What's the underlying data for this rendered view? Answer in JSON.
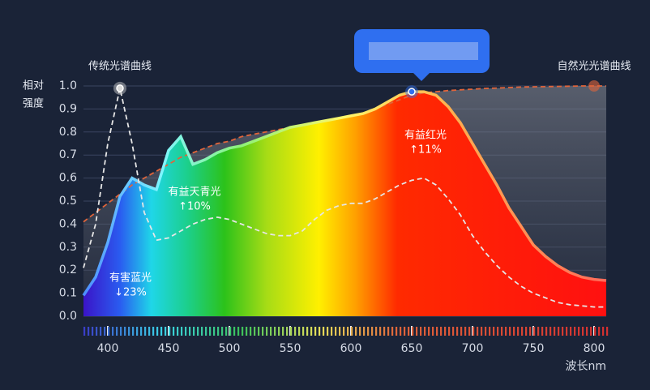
{
  "chart_data": {
    "type": "spectrum",
    "y_label_lines": [
      "相对",
      "强度"
    ],
    "x_label": "波长nm",
    "x": [
      380,
      390,
      400,
      410,
      420,
      430,
      440,
      450,
      460,
      470,
      480,
      490,
      500,
      510,
      520,
      530,
      540,
      550,
      560,
      570,
      580,
      590,
      600,
      610,
      620,
      630,
      640,
      650,
      660,
      670,
      680,
      690,
      700,
      710,
      720,
      730,
      740,
      750,
      760,
      770,
      780,
      790,
      800,
      810
    ],
    "series": [
      {
        "values": [
          0.09,
          0.17,
          0.32,
          0.52,
          0.6,
          0.57,
          0.55,
          0.72,
          0.78,
          0.66,
          0.68,
          0.71,
          0.73,
          0.74,
          0.76,
          0.78,
          0.8,
          0.82,
          0.83,
          0.84,
          0.85,
          0.86,
          0.87,
          0.88,
          0.9,
          0.93,
          0.96,
          0.975,
          0.975,
          0.96,
          0.91,
          0.84,
          0.75,
          0.66,
          0.57,
          0.47,
          0.39,
          0.31,
          0.26,
          0.22,
          0.19,
          0.17,
          0.16,
          0.155
        ]
      },
      {
        "name": "传统光谱曲线",
        "color": "#e6e6e6",
        "values": [
          0.21,
          0.4,
          0.75,
          0.99,
          0.75,
          0.45,
          0.33,
          0.34,
          0.37,
          0.4,
          0.42,
          0.43,
          0.42,
          0.4,
          0.38,
          0.36,
          0.35,
          0.35,
          0.37,
          0.42,
          0.46,
          0.48,
          0.49,
          0.49,
          0.51,
          0.54,
          0.57,
          0.59,
          0.6,
          0.57,
          0.51,
          0.44,
          0.35,
          0.28,
          0.22,
          0.17,
          0.13,
          0.1,
          0.08,
          0.06,
          0.05,
          0.045,
          0.04,
          0.04
        ]
      },
      {
        "name": "自然光光谱曲线",
        "color": "#e0643a",
        "values": [
          0.41,
          0.45,
          0.49,
          0.53,
          0.57,
          0.6,
          0.63,
          0.66,
          0.69,
          0.71,
          0.73,
          0.75,
          0.76,
          0.78,
          0.79,
          0.8,
          0.81,
          0.82,
          0.83,
          0.84,
          0.85,
          0.86,
          0.87,
          0.88,
          0.9,
          0.92,
          0.94,
          0.96,
          0.97,
          0.975,
          0.98,
          0.983,
          0.986,
          0.989,
          0.991,
          0.993,
          0.995,
          0.996,
          0.997,
          0.998,
          0.999,
          1.0,
          1.0,
          1.0
        ]
      }
    ],
    "annotations": [
      {
        "lines": [
          "有害蓝光",
          "↓23%"
        ]
      },
      {
        "lines": [
          "有益天青光",
          "↑10%"
        ]
      },
      {
        "lines": [
          "有益红光",
          "↑11%"
        ]
      }
    ],
    "xlim": [
      380,
      810
    ],
    "ylim": [
      0,
      1
    ],
    "xticks": [
      400,
      450,
      500,
      550,
      600,
      650,
      700,
      750,
      800
    ],
    "yticks": [
      {
        "value": 0,
        "label": "0.0"
      },
      0.1,
      0.2,
      0.3,
      0.4,
      0.5,
      0.6,
      0.7,
      0.8,
      0.9,
      {
        "value": 1,
        "label": "1.0"
      }
    ],
    "grid": true
  }
}
